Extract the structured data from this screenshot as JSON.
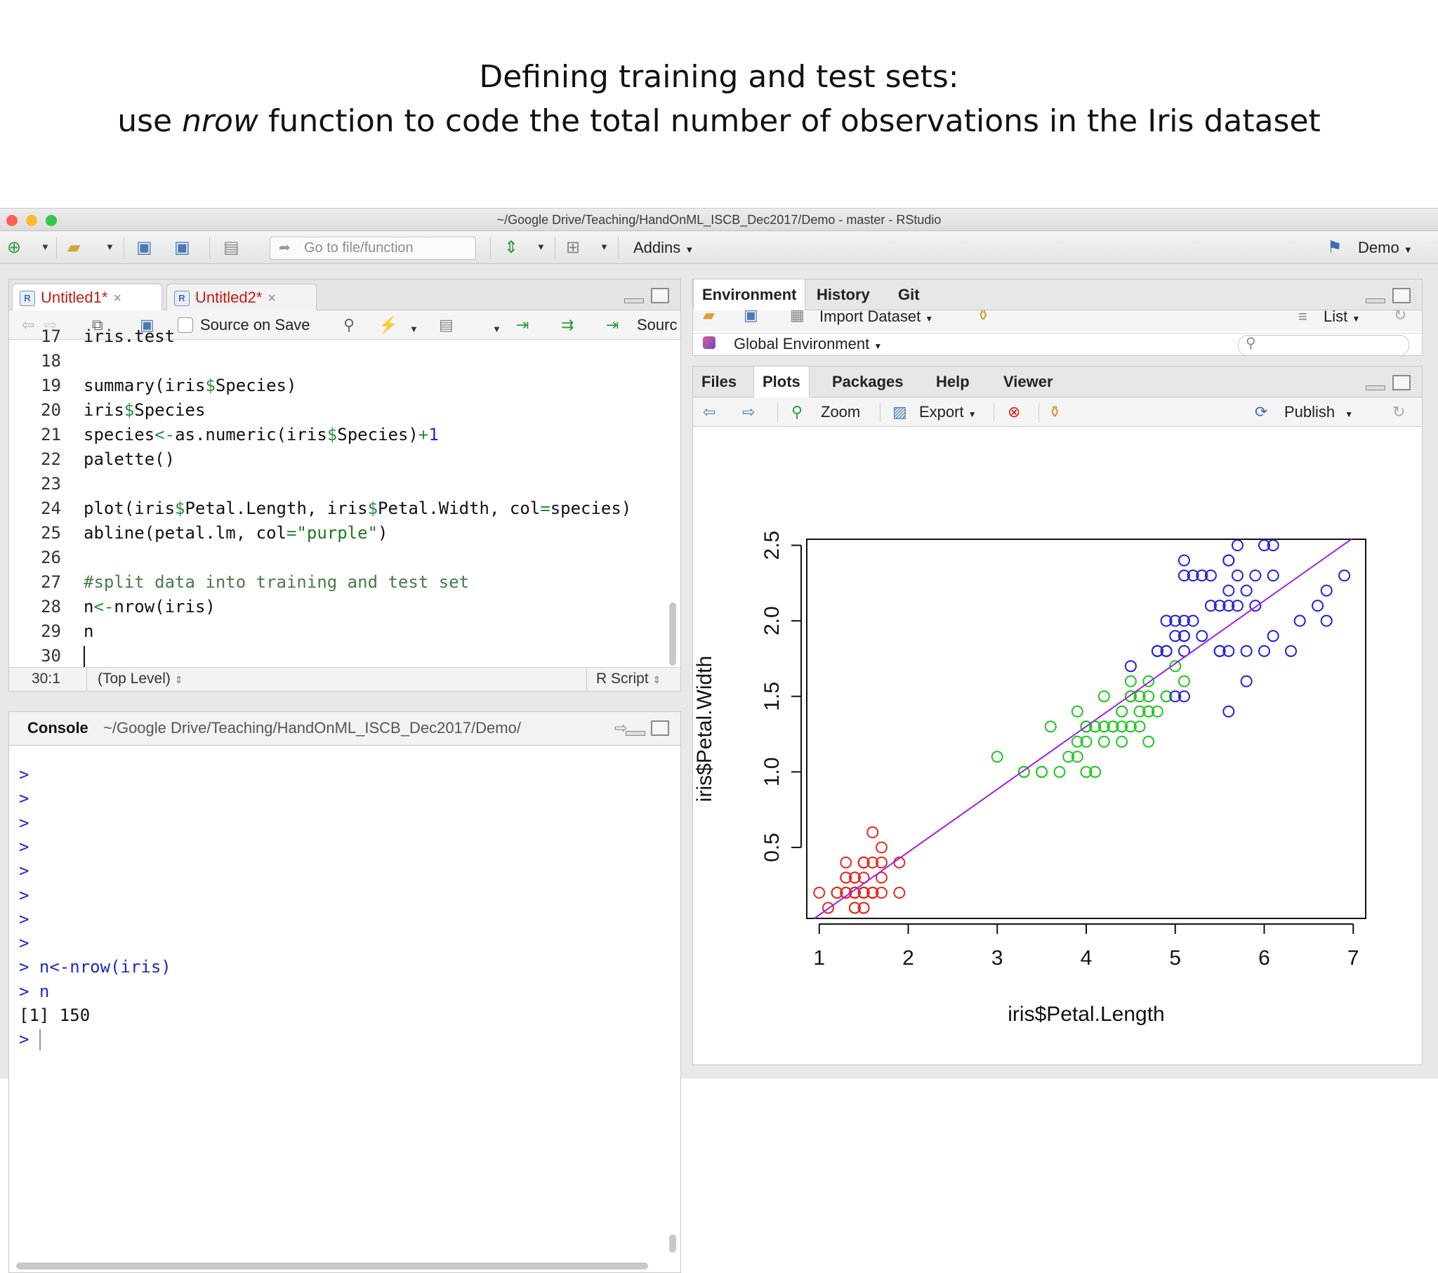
{
  "slide": {
    "title_line1": "Defining training and test sets:",
    "title_line2_pre": "use ",
    "title_line2_em": "nrow",
    "title_line2_post": " function to code the total number of observations in the Iris dataset"
  },
  "window": {
    "title": "~/Google Drive/Teaching/HandOnML_ISCB_Dec2017/Demo - master - RStudio",
    "traffic_colors": [
      "#fc5f57",
      "#fdbc2e",
      "#33c748"
    ]
  },
  "toolbar": {
    "goto_placeholder": "Go to file/function",
    "addins_label": "Addins",
    "project_label": "Demo"
  },
  "editor": {
    "tabs": [
      {
        "label": "Untitled1*",
        "close": "×",
        "active": true
      },
      {
        "label": "Untitled2*",
        "close": "×",
        "active": false
      }
    ],
    "source_on_save": "Source on Save",
    "source_label": "Sourc",
    "partial_line_text": "iris.test",
    "lines": [
      {
        "n": "18",
        "text": ""
      },
      {
        "n": "19",
        "text": "summary(iris$Species)"
      },
      {
        "n": "20",
        "text": "iris$Species"
      },
      {
        "n": "21",
        "text": "species<-as.numeric(iris$Species)+1"
      },
      {
        "n": "22",
        "text": "palette()"
      },
      {
        "n": "23",
        "text": ""
      },
      {
        "n": "24",
        "text": "plot(iris$Petal.Length, iris$Petal.Width, col=species)"
      },
      {
        "n": "25",
        "text": "abline(petal.lm, col=\"purple\")"
      },
      {
        "n": "26",
        "text": ""
      },
      {
        "n": "27",
        "text": "#split data into training and test set"
      },
      {
        "n": "28",
        "text": "n<-nrow(iris)"
      },
      {
        "n": "29",
        "text": "n"
      },
      {
        "n": "30",
        "text": ""
      }
    ],
    "status_position": "30:1",
    "status_scope": "(Top Level)",
    "status_type": "R Script"
  },
  "console": {
    "title": "Console",
    "path": "~/Google Drive/Teaching/HandOnML_ISCB_Dec2017/Demo/",
    "lines": [
      {
        "kind": "prompt",
        "text": ">"
      },
      {
        "kind": "prompt",
        "text": ">"
      },
      {
        "kind": "prompt",
        "text": ">"
      },
      {
        "kind": "prompt",
        "text": ">"
      },
      {
        "kind": "prompt",
        "text": ">"
      },
      {
        "kind": "prompt",
        "text": ">"
      },
      {
        "kind": "prompt",
        "text": ">"
      },
      {
        "kind": "prompt",
        "text": ">"
      },
      {
        "kind": "prompt",
        "text": "> n<-nrow(iris)"
      },
      {
        "kind": "prompt",
        "text": "> n"
      },
      {
        "kind": "output",
        "text": "[1] 150"
      },
      {
        "kind": "prompt",
        "text": "> "
      }
    ]
  },
  "environment": {
    "tabs": [
      "Environment",
      "History",
      "Git"
    ],
    "import_label": "Import Dataset",
    "list_label": "List",
    "env_label": "Global Environment"
  },
  "files_pane": {
    "tabs": [
      "Files",
      "Plots",
      "Packages",
      "Help",
      "Viewer"
    ],
    "zoom_label": "Zoom",
    "export_label": "Export",
    "publish_label": "Publish"
  },
  "chart_data": {
    "type": "scatter",
    "xlabel": "iris$Petal.Length",
    "ylabel": "iris$Petal.Width",
    "xlim": [
      1,
      7
    ],
    "ylim": [
      0,
      2.5
    ],
    "xticks": [
      "1",
      "2",
      "3",
      "4",
      "5",
      "6",
      "7"
    ],
    "yticks": [
      "0.5",
      "1.0",
      "1.5",
      "2.0",
      "2.5"
    ],
    "regression_line": {
      "intercept": -0.363,
      "slope": 0.416,
      "color": "#a020f0"
    },
    "series": [
      {
        "color": "#e8281e",
        "points": [
          [
            1.4,
            0.2
          ],
          [
            1.4,
            0.2
          ],
          [
            1.3,
            0.2
          ],
          [
            1.5,
            0.2
          ],
          [
            1.4,
            0.2
          ],
          [
            1.7,
            0.4
          ],
          [
            1.4,
            0.3
          ],
          [
            1.5,
            0.2
          ],
          [
            1.4,
            0.2
          ],
          [
            1.5,
            0.1
          ],
          [
            1.5,
            0.2
          ],
          [
            1.6,
            0.2
          ],
          [
            1.4,
            0.1
          ],
          [
            1.1,
            0.1
          ],
          [
            1.2,
            0.2
          ],
          [
            1.5,
            0.4
          ],
          [
            1.3,
            0.4
          ],
          [
            1.4,
            0.3
          ],
          [
            1.7,
            0.3
          ],
          [
            1.5,
            0.3
          ],
          [
            1.7,
            0.2
          ],
          [
            1.5,
            0.4
          ],
          [
            1.0,
            0.2
          ],
          [
            1.7,
            0.5
          ],
          [
            1.9,
            0.2
          ],
          [
            1.6,
            0.2
          ],
          [
            1.6,
            0.4
          ],
          [
            1.5,
            0.2
          ],
          [
            1.4,
            0.2
          ],
          [
            1.6,
            0.2
          ],
          [
            1.6,
            0.2
          ],
          [
            1.5,
            0.4
          ],
          [
            1.5,
            0.1
          ],
          [
            1.4,
            0.2
          ],
          [
            1.5,
            0.2
          ],
          [
            1.2,
            0.2
          ],
          [
            1.3,
            0.2
          ],
          [
            1.4,
            0.1
          ],
          [
            1.3,
            0.2
          ],
          [
            1.5,
            0.2
          ],
          [
            1.3,
            0.3
          ],
          [
            1.3,
            0.3
          ],
          [
            1.3,
            0.2
          ],
          [
            1.6,
            0.6
          ],
          [
            1.9,
            0.4
          ],
          [
            1.4,
            0.3
          ],
          [
            1.6,
            0.2
          ],
          [
            1.4,
            0.2
          ],
          [
            1.5,
            0.2
          ],
          [
            1.4,
            0.2
          ]
        ]
      },
      {
        "color": "#1ec81e",
        "points": [
          [
            4.7,
            1.4
          ],
          [
            4.5,
            1.5
          ],
          [
            4.9,
            1.5
          ],
          [
            4.0,
            1.3
          ],
          [
            4.6,
            1.5
          ],
          [
            4.5,
            1.3
          ],
          [
            4.7,
            1.6
          ],
          [
            3.3,
            1.0
          ],
          [
            4.6,
            1.3
          ],
          [
            3.9,
            1.4
          ],
          [
            3.5,
            1.0
          ],
          [
            4.2,
            1.5
          ],
          [
            4.0,
            1.0
          ],
          [
            4.7,
            1.4
          ],
          [
            3.6,
            1.3
          ],
          [
            4.4,
            1.4
          ],
          [
            4.5,
            1.5
          ],
          [
            4.1,
            1.0
          ],
          [
            4.5,
            1.5
          ],
          [
            3.9,
            1.1
          ],
          [
            4.8,
            1.8
          ],
          [
            4.0,
            1.3
          ],
          [
            4.9,
            1.5
          ],
          [
            4.7,
            1.2
          ],
          [
            4.3,
            1.3
          ],
          [
            4.4,
            1.4
          ],
          [
            4.8,
            1.4
          ],
          [
            5.0,
            1.7
          ],
          [
            4.5,
            1.5
          ],
          [
            3.5,
            1.0
          ],
          [
            3.8,
            1.1
          ],
          [
            3.7,
            1.0
          ],
          [
            3.9,
            1.2
          ],
          [
            5.1,
            1.6
          ],
          [
            4.5,
            1.5
          ],
          [
            4.5,
            1.6
          ],
          [
            4.7,
            1.5
          ],
          [
            4.4,
            1.3
          ],
          [
            4.1,
            1.3
          ],
          [
            4.0,
            1.3
          ],
          [
            4.4,
            1.2
          ],
          [
            4.6,
            1.4
          ],
          [
            4.0,
            1.2
          ],
          [
            3.3,
            1.0
          ],
          [
            4.2,
            1.3
          ],
          [
            4.2,
            1.2
          ],
          [
            4.2,
            1.3
          ],
          [
            4.3,
            1.3
          ],
          [
            3.0,
            1.1
          ],
          [
            4.1,
            1.3
          ]
        ]
      },
      {
        "color": "#2020e0",
        "points": [
          [
            6.0,
            2.5
          ],
          [
            5.1,
            1.9
          ],
          [
            5.9,
            2.1
          ],
          [
            5.6,
            1.8
          ],
          [
            5.8,
            2.2
          ],
          [
            6.6,
            2.1
          ],
          [
            4.5,
            1.7
          ],
          [
            6.3,
            1.8
          ],
          [
            5.8,
            1.8
          ],
          [
            6.1,
            2.5
          ],
          [
            5.1,
            2.0
          ],
          [
            5.3,
            1.9
          ],
          [
            5.5,
            2.1
          ],
          [
            5.0,
            2.0
          ],
          [
            5.1,
            2.4
          ],
          [
            5.3,
            2.3
          ],
          [
            5.5,
            1.8
          ],
          [
            6.7,
            2.2
          ],
          [
            6.9,
            2.3
          ],
          [
            5.0,
            1.5
          ],
          [
            5.7,
            2.3
          ],
          [
            4.9,
            2.0
          ],
          [
            6.7,
            2.0
          ],
          [
            4.9,
            1.8
          ],
          [
            5.7,
            2.1
          ],
          [
            6.0,
            1.8
          ],
          [
            4.8,
            1.8
          ],
          [
            4.9,
            1.8
          ],
          [
            5.6,
            2.1
          ],
          [
            5.8,
            1.6
          ],
          [
            6.1,
            1.9
          ],
          [
            6.4,
            2.0
          ],
          [
            5.6,
            2.2
          ],
          [
            5.1,
            1.5
          ],
          [
            5.6,
            1.4
          ],
          [
            6.1,
            2.3
          ],
          [
            5.6,
            2.4
          ],
          [
            5.5,
            1.8
          ],
          [
            4.8,
            1.8
          ],
          [
            5.4,
            2.1
          ],
          [
            5.6,
            2.4
          ],
          [
            5.1,
            2.3
          ],
          [
            5.1,
            1.9
          ],
          [
            5.9,
            2.3
          ],
          [
            5.7,
            2.5
          ],
          [
            5.2,
            2.3
          ],
          [
            5.0,
            1.9
          ],
          [
            5.2,
            2.0
          ],
          [
            5.4,
            2.3
          ],
          [
            5.1,
            1.8
          ]
        ]
      }
    ]
  }
}
